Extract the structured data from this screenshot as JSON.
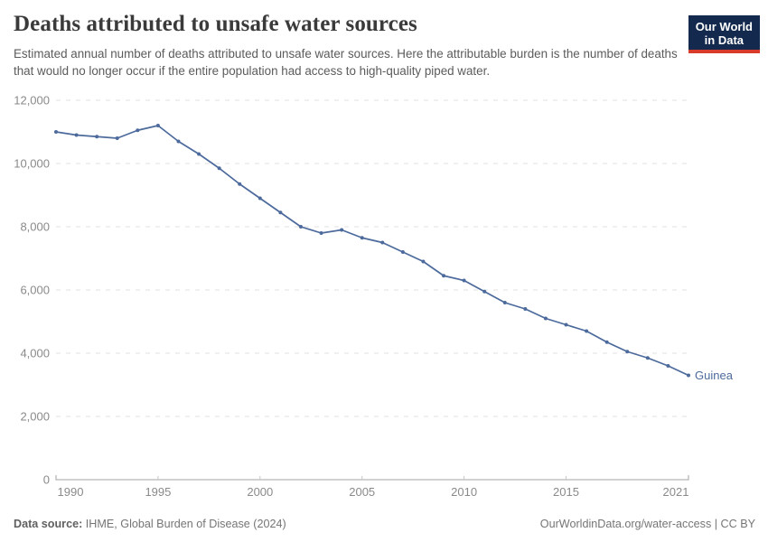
{
  "header": {
    "title": "Deaths attributed to unsafe water sources",
    "subtitle": "Estimated annual number of deaths attributed to unsafe water sources. Here the attributable burden is the number of deaths that would no longer occur if the entire population had access to high-quality piped water.",
    "logo": {
      "line1": "Our World",
      "line2": "in Data"
    }
  },
  "footer": {
    "source_label": "Data source:",
    "source_value": " IHME, Global Burden of Disease (2024)",
    "license": "OurWorldinData.org/water-access | CC BY"
  },
  "colors": {
    "line": "#4C6A9C",
    "axis_text": "#8a8a8a",
    "gridline": "#e2e2e2",
    "axis_line": "#a3a3a3",
    "tick": "#c6c6c6",
    "logo_navy": "#132A4E",
    "logo_red": "#D93B2B"
  },
  "chart_data": {
    "type": "line",
    "title": "Deaths attributed to unsafe water sources",
    "xlabel": "",
    "ylabel": "",
    "xlim": [
      1990,
      2021
    ],
    "ylim": [
      0,
      12000
    ],
    "grid": "horizontal-dashed",
    "legend_position": "end-of-line-label",
    "x": [
      1990,
      1991,
      1992,
      1993,
      1994,
      1995,
      1996,
      1997,
      1998,
      1999,
      2000,
      2001,
      2002,
      2003,
      2004,
      2005,
      2006,
      2007,
      2008,
      2009,
      2010,
      2011,
      2012,
      2013,
      2014,
      2015,
      2016,
      2017,
      2018,
      2019,
      2020,
      2021
    ],
    "series": [
      {
        "name": "Guinea",
        "color": "#4C6A9C",
        "values": [
          11000,
          10900,
          10850,
          10800,
          11050,
          11200,
          10700,
          10300,
          9850,
          9350,
          8900,
          8450,
          8000,
          7800,
          7900,
          7650,
          7500,
          7200,
          6900,
          6450,
          6300,
          5950,
          5600,
          5400,
          5100,
          4900,
          4700,
          4350,
          4050,
          3850,
          3600,
          3300
        ]
      }
    ],
    "xticks": [
      1990,
      1995,
      2000,
      2005,
      2010,
      2015,
      2021
    ],
    "yticks": [
      {
        "value": 0,
        "label": "0"
      },
      {
        "value": 2000,
        "label": "2,000"
      },
      {
        "value": 4000,
        "label": "4,000"
      },
      {
        "value": 6000,
        "label": "6,000"
      },
      {
        "value": 8000,
        "label": "8,000"
      },
      {
        "value": 10000,
        "label": "10,000"
      },
      {
        "value": 12000,
        "label": "12,000"
      }
    ]
  }
}
